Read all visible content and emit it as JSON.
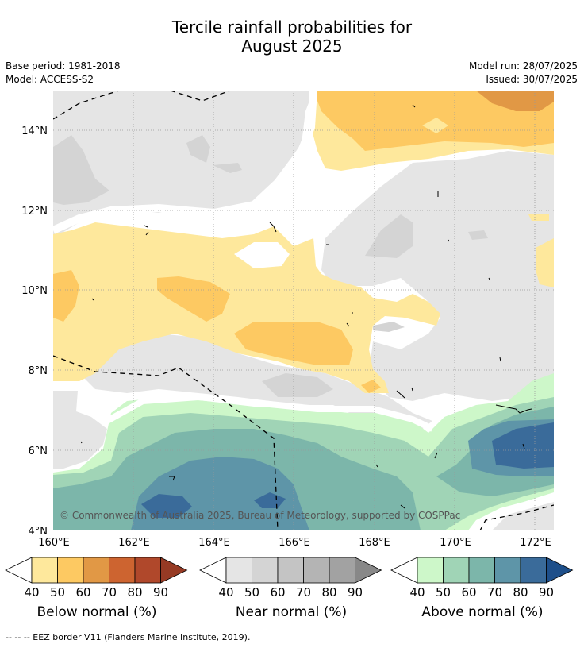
{
  "title_line1": "Tercile rainfall probabilities for",
  "title_line2": "August 2025",
  "base_period": "Base period: 1981-2018",
  "model": "Model: ACCESS-S2",
  "model_run": "Model run: 28/07/2025",
  "issued": "Issued: 30/07/2025",
  "copyright": "© Commonwealth of Australia 2025, Bureau of Meteorology, supported by COSPPac",
  "lat_ticks": [
    "14°N",
    "12°N",
    "10°N",
    "8°N",
    "6°N",
    "4°N"
  ],
  "lon_ticks": [
    "160°E",
    "162°E",
    "164°E",
    "166°E",
    "168°E",
    "170°E",
    "172°E"
  ],
  "colorbars": [
    {
      "label": "Below normal (%)",
      "ticks": [
        "40",
        "50",
        "60",
        "70",
        "80",
        "90"
      ],
      "colors": [
        "#fee89c",
        "#fdc962",
        "#e19845",
        "#cd6430",
        "#b0482b",
        "#963a24"
      ]
    },
    {
      "label": "Near normal (%)",
      "ticks": [
        "40",
        "50",
        "60",
        "70",
        "80",
        "90"
      ],
      "colors": [
        "#e5e5e5",
        "#d4d4d4",
        "#c4c4c4",
        "#b4b4b4",
        "#a2a2a2",
        "#888888"
      ]
    },
    {
      "label": "Above normal (%)",
      "ticks": [
        "40",
        "50",
        "60",
        "70",
        "80",
        "90"
      ],
      "colors": [
        "#cdf7c9",
        "#a0d4b6",
        "#7cb6aa",
        "#5e95a8",
        "#3a6b9a",
        "#1e4f8a"
      ]
    }
  ],
  "footer": "--  --  -- EEZ border V11 (Flanders Marine Institute, 2019)."
}
